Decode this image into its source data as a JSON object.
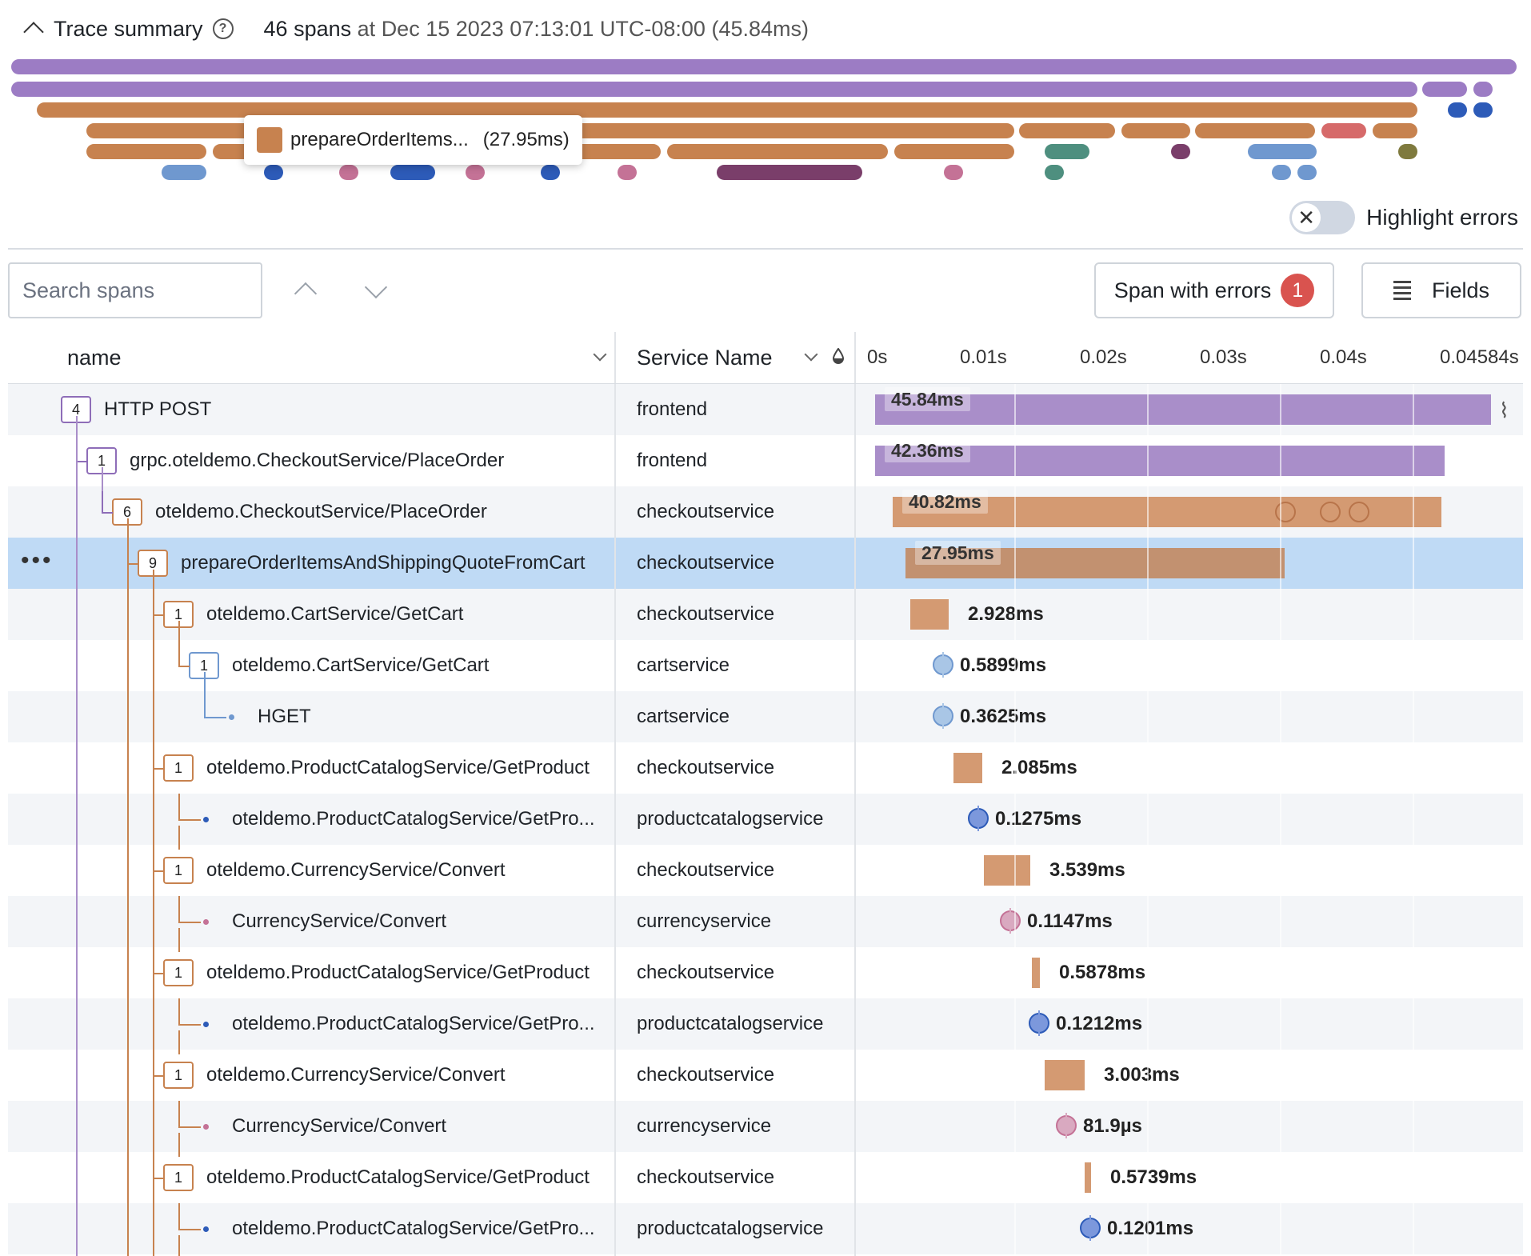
{
  "header": {
    "title": "Trace summary",
    "span_count": "46 spans",
    "at_label": "at",
    "timestamp": "Dec 15 2023 07:13:01 UTC-08:00",
    "duration": "(45.84ms)"
  },
  "tooltip": {
    "name": "prepareOrderItems...",
    "duration": "(27.95ms)",
    "color": "#c7824f"
  },
  "highlight_errors": {
    "label": "Highlight errors",
    "enabled": false
  },
  "toolbar": {
    "search_placeholder": "Search spans",
    "errors_label": "Span with errors",
    "errors_count": "1",
    "fields_label": "Fields"
  },
  "columns": {
    "name": "name",
    "service": "Service Name",
    "ticks": [
      "0s",
      "0.01s",
      "0.02s",
      "0.03s",
      "0.04s",
      "0.04584s"
    ]
  },
  "colors": {
    "frontend": "#a98ec9",
    "checkout": "#d49a72",
    "cart": "#a9c6e6",
    "productcatalog": "#7c98dc",
    "currency": "#d9a9c0",
    "error": "#d9534f"
  },
  "rows": [
    {
      "name": "HTTP POST",
      "service": "frontend",
      "count": "4",
      "duration": "45.84ms"
    },
    {
      "name": "grpc.oteldemo.CheckoutService/PlaceOrder",
      "service": "frontend",
      "count": "1",
      "duration": "42.36ms"
    },
    {
      "name": "oteldemo.CheckoutService/PlaceOrder",
      "service": "checkoutservice",
      "count": "6",
      "duration": "40.82ms"
    },
    {
      "name": "prepareOrderItemsAndShippingQuoteFromCart",
      "service": "checkoutservice",
      "count": "9",
      "duration": "27.95ms"
    },
    {
      "name": "oteldemo.CartService/GetCart",
      "service": "checkoutservice",
      "count": "1",
      "duration": "2.928ms"
    },
    {
      "name": "oteldemo.CartService/GetCart",
      "service": "cartservice",
      "count": "1",
      "duration": "0.5899ms"
    },
    {
      "name": "HGET",
      "service": "cartservice",
      "count": "",
      "duration": "0.3625ms"
    },
    {
      "name": "oteldemo.ProductCatalogService/GetProduct",
      "service": "checkoutservice",
      "count": "1",
      "duration": "2.085ms"
    },
    {
      "name": "oteldemo.ProductCatalogService/GetPro...",
      "service": "productcatalogservice",
      "count": "",
      "duration": "0.1275ms"
    },
    {
      "name": "oteldemo.CurrencyService/Convert",
      "service": "checkoutservice",
      "count": "1",
      "duration": "3.539ms"
    },
    {
      "name": "CurrencyService/Convert",
      "service": "currencyservice",
      "count": "",
      "duration": "0.1147ms"
    },
    {
      "name": "oteldemo.ProductCatalogService/GetProduct",
      "service": "checkoutservice",
      "count": "1",
      "duration": "0.5878ms"
    },
    {
      "name": "oteldemo.ProductCatalogService/GetPro...",
      "service": "productcatalogservice",
      "count": "",
      "duration": "0.1212ms"
    },
    {
      "name": "oteldemo.CurrencyService/Convert",
      "service": "checkoutservice",
      "count": "1",
      "duration": "3.003ms"
    },
    {
      "name": "CurrencyService/Convert",
      "service": "currencyservice",
      "count": "",
      "duration": "81.9µs"
    },
    {
      "name": "oteldemo.ProductCatalogService/GetProduct",
      "service": "checkoutservice",
      "count": "1",
      "duration": "0.5739ms"
    },
    {
      "name": "oteldemo.ProductCatalogService/GetPro...",
      "service": "productcatalogservice",
      "count": "",
      "duration": "0.1201ms"
    }
  ]
}
